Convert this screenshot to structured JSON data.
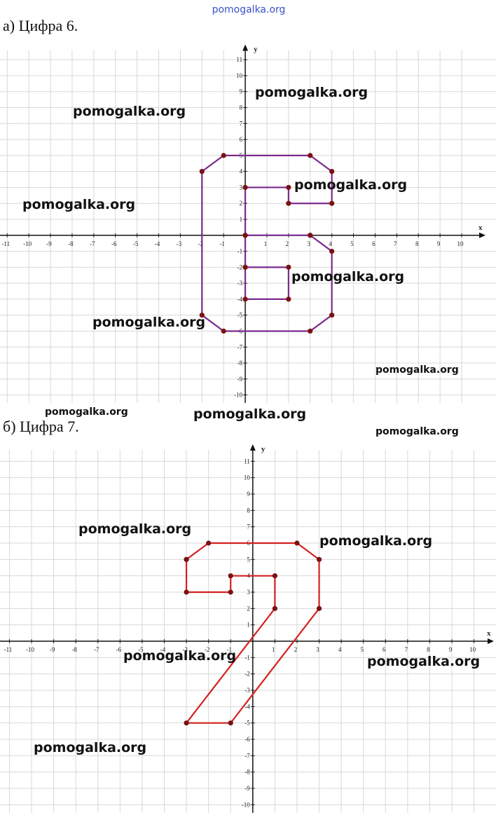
{
  "header": "pomogalka.org",
  "chart_data": [
    {
      "type": "line",
      "title": "а) Цифра 6.",
      "xlabel": "x",
      "ylabel": "y",
      "series": [
        {
          "color": "#7b2a8c",
          "x": [
            3,
            4,
            4,
            3,
            -1,
            -2,
            -2,
            -1,
            3,
            4,
            4,
            2,
            2,
            0,
            0,
            0,
            0,
            2,
            2,
            0,
            null,
            0,
            3
          ],
          "values": [
            0,
            -1,
            -5,
            -6,
            -6,
            -5,
            4,
            5,
            5,
            4,
            2,
            2,
            3,
            3,
            0,
            -2,
            -4,
            -4,
            -2,
            -2,
            null,
            0,
            0
          ]
        }
      ],
      "point_color": "#7a1212",
      "xlim": [
        -11.3,
        11.1
      ],
      "ylim": [
        -10.5,
        11.6
      ],
      "xticks": [
        -11,
        -10,
        -9,
        -8,
        -7,
        -6,
        -5,
        -4,
        -3,
        -2,
        -1,
        1,
        2,
        3,
        4,
        5,
        6,
        7,
        8,
        9,
        10
      ],
      "yticks": [
        -10,
        -9,
        -8,
        -7,
        -6,
        -5,
        -4,
        -3,
        -2,
        -1,
        1,
        2,
        3,
        4,
        5,
        6,
        7,
        8,
        9,
        10,
        11
      ],
      "grid": true
    },
    {
      "type": "line",
      "title": "б) Цифра 7.",
      "xlabel": "x",
      "ylabel": "y",
      "series": [
        {
          "color": "#d42020",
          "x": [
            -3,
            -2,
            2,
            3,
            3,
            -1,
            -3,
            1,
            1,
            -1,
            -1,
            -3,
            -3
          ],
          "values": [
            5,
            6,
            6,
            5,
            2,
            -5,
            -5,
            2,
            4,
            4,
            3,
            3,
            5
          ]
        }
      ],
      "point_color": "#7a1212",
      "xlim": [
        -11.3,
        10.9
      ],
      "ylim": [
        -10.5,
        11.7
      ],
      "xticks": [
        -11,
        -10,
        -9,
        -8,
        -7,
        -6,
        -5,
        -4,
        -3,
        -2,
        -1,
        1,
        2,
        3,
        4,
        5,
        6,
        7,
        8,
        9,
        10
      ],
      "yticks": [
        -10,
        -9,
        -8,
        -7,
        -6,
        -5,
        -4,
        -3,
        -2,
        -1,
        1,
        2,
        3,
        4,
        5,
        6,
        7,
        8,
        9,
        10,
        11
      ],
      "grid": true
    }
  ],
  "watermarks": [
    "pomogalka.org",
    "pomogalka.org",
    "pomogalka.org",
    "pomogalka.org",
    "pomogalka.org",
    "pomogalka.org",
    "pomogalka.org",
    "pomogalka.org",
    "pomogalka.org",
    "pomogalka.org",
    "pomogalka.org",
    "pomogalka.org",
    "pomogalka.org",
    "pomogalka.org",
    "pomogalka.org"
  ]
}
